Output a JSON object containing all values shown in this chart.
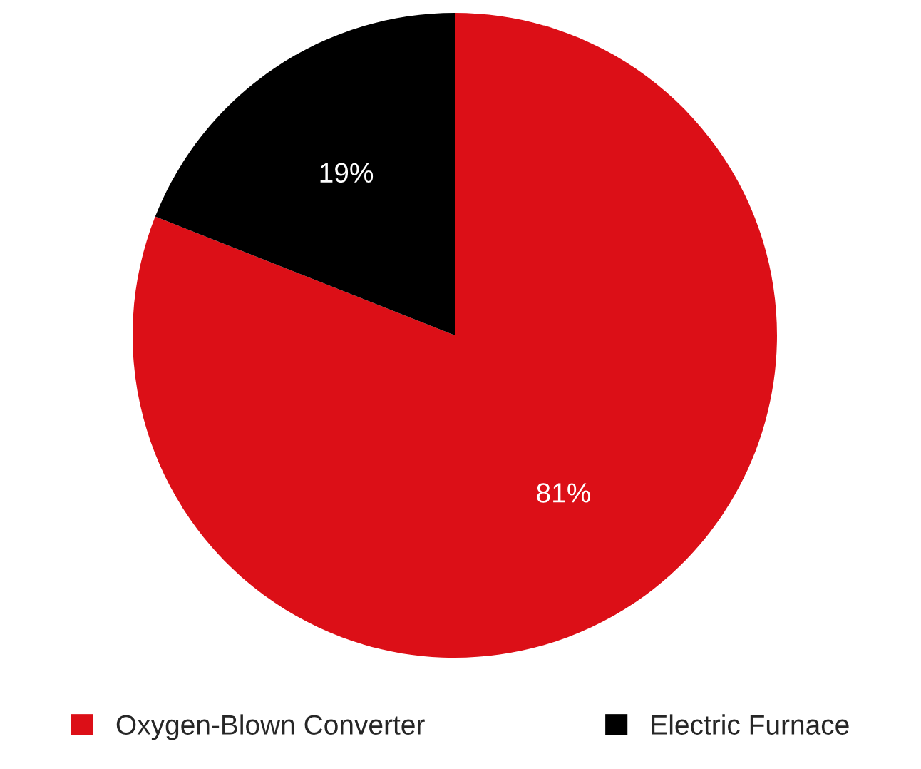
{
  "chart_data": {
    "type": "pie",
    "categories": [
      "Oxygen-Blown Converter",
      "Electric Furnace"
    ],
    "values": [
      81,
      19
    ],
    "colors": [
      "#dc0f17",
      "#000000"
    ],
    "value_labels": [
      "81%",
      "19%"
    ],
    "legend": "bottom"
  }
}
